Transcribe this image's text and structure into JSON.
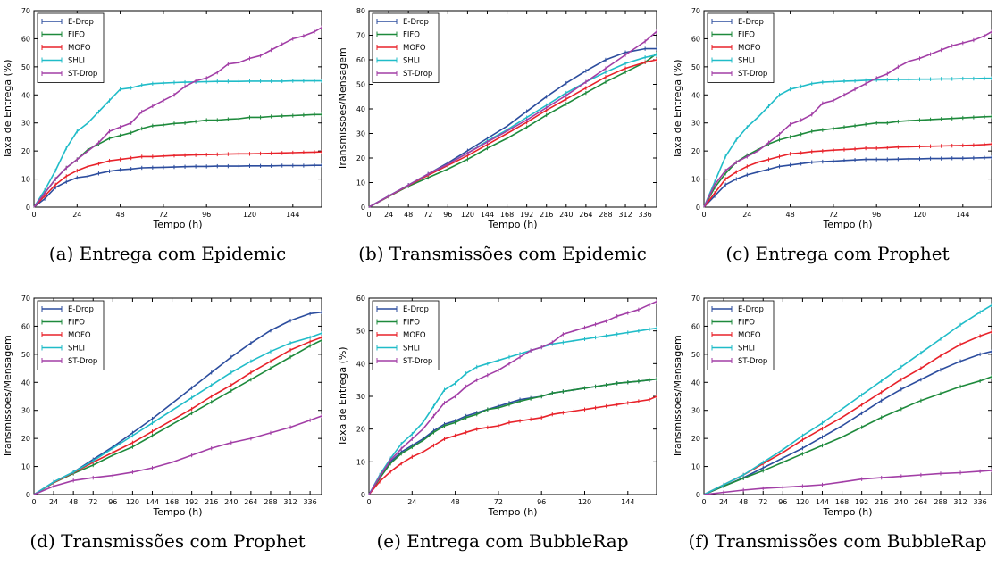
{
  "colors": {
    "E-Drop": "#2c4d9e",
    "FIFO": "#1e8a3c",
    "MOFO": "#e8222a",
    "SHLI": "#20bcc8",
    "ST-Drop": "#a23ea6"
  },
  "chart_data": [
    {
      "type": "line",
      "caption": "(a)  Entrega com Epidemic",
      "xlabel": "Tempo (h)",
      "ylabel": "Taxa de Entrega (%)",
      "xlim": [
        0,
        160
      ],
      "ylim": [
        0,
        70
      ],
      "xticks": [
        0,
        24,
        48,
        72,
        96,
        120,
        144
      ],
      "yticks": [
        0,
        10,
        20,
        30,
        40,
        50,
        60,
        70
      ],
      "legend": "top-left",
      "x": [
        0,
        6,
        12,
        18,
        24,
        30,
        36,
        42,
        48,
        54,
        60,
        66,
        72,
        78,
        84,
        90,
        96,
        102,
        108,
        114,
        120,
        126,
        132,
        138,
        144,
        150,
        156,
        160
      ],
      "series": [
        {
          "name": "E-Drop",
          "values": [
            0,
            3,
            7,
            9,
            10.5,
            11,
            12,
            12.8,
            13.3,
            13.6,
            14,
            14.1,
            14.2,
            14.3,
            14.4,
            14.5,
            14.5,
            14.6,
            14.6,
            14.6,
            14.7,
            14.7,
            14.7,
            14.8,
            14.8,
            14.8,
            14.9,
            14.9
          ]
        },
        {
          "name": "FIFO",
          "values": [
            0,
            5,
            10,
            14,
            17,
            20.5,
            22.5,
            24.5,
            25.5,
            26.5,
            28,
            29,
            29.3,
            29.8,
            30,
            30.5,
            31,
            31,
            31.3,
            31.5,
            32,
            32,
            32.3,
            32.5,
            32.6,
            32.8,
            33,
            33
          ]
        },
        {
          "name": "MOFO",
          "values": [
            0,
            4,
            8,
            11,
            13,
            14.5,
            15.5,
            16.5,
            17,
            17.5,
            18,
            18,
            18.2,
            18.4,
            18.5,
            18.6,
            18.7,
            18.8,
            18.9,
            19,
            19,
            19.1,
            19.2,
            19.3,
            19.4,
            19.5,
            19.6,
            19.7
          ]
        },
        {
          "name": "SHLI",
          "values": [
            0,
            6,
            13,
            21,
            27,
            30,
            34,
            38,
            42,
            42.5,
            43.5,
            44,
            44.2,
            44.4,
            44.5,
            44.6,
            44.7,
            44.8,
            44.8,
            44.8,
            44.9,
            44.9,
            44.9,
            44.9,
            45,
            45,
            45,
            45
          ]
        },
        {
          "name": "ST-Drop",
          "values": [
            0,
            5,
            10,
            14,
            17,
            20,
            23,
            27,
            28.5,
            30,
            34,
            36,
            38,
            40,
            43,
            45,
            46,
            48,
            51,
            51.5,
            53,
            54,
            56,
            58,
            60,
            61,
            62.5,
            64
          ]
        }
      ]
    },
    {
      "type": "line",
      "caption": "(b)  Transmissões com Epidemic",
      "xlabel": "Tempo (h)",
      "ylabel": "Transmissões/Mensagem",
      "xlim": [
        0,
        350
      ],
      "ylim": [
        0,
        80
      ],
      "xticks": [
        0,
        24,
        48,
        72,
        96,
        120,
        144,
        168,
        192,
        216,
        240,
        264,
        288,
        312,
        336
      ],
      "yticks": [
        0,
        10,
        20,
        30,
        40,
        50,
        60,
        70,
        80
      ],
      "legend": "top-left",
      "x": [
        0,
        24,
        48,
        72,
        96,
        120,
        144,
        168,
        192,
        216,
        240,
        264,
        288,
        312,
        336,
        350
      ],
      "series": [
        {
          "name": "E-Drop",
          "values": [
            0,
            4.5,
            9,
            13.5,
            18,
            23,
            28,
            33,
            39,
            45,
            50.5,
            55.5,
            60,
            63,
            64.5,
            64.5
          ]
        },
        {
          "name": "FIFO",
          "values": [
            0,
            4.3,
            8.5,
            12,
            15.5,
            19.5,
            24,
            28,
            32.5,
            37.5,
            42,
            46.5,
            51,
            55,
            59,
            62.5
          ]
        },
        {
          "name": "MOFO",
          "values": [
            0,
            4.4,
            8.8,
            13,
            17,
            21,
            25.5,
            30,
            34.5,
            39.5,
            44,
            48.5,
            53,
            56.5,
            59,
            60
          ]
        },
        {
          "name": "SHLI",
          "values": [
            0,
            4.5,
            9,
            13.5,
            17.5,
            22,
            27,
            31.5,
            36.5,
            41.5,
            46.5,
            51,
            55,
            58.5,
            61,
            62
          ]
        },
        {
          "name": "ST-Drop",
          "values": [
            0,
            4.5,
            9,
            13.5,
            17.5,
            22,
            26.5,
            31,
            35.5,
            40.5,
            45.5,
            51,
            56.5,
            62,
            67.5,
            71.5
          ]
        }
      ]
    },
    {
      "type": "line",
      "caption": "(c)  Entrega com Prophet",
      "xlabel": "Tempo (h)",
      "ylabel": "Taxa de Entrega (%)",
      "xlim": [
        0,
        160
      ],
      "ylim": [
        0,
        70
      ],
      "xticks": [
        0,
        24,
        48,
        72,
        96,
        120,
        144
      ],
      "yticks": [
        0,
        10,
        20,
        30,
        40,
        50,
        60,
        70
      ],
      "legend": "top-left",
      "x": [
        0,
        6,
        12,
        18,
        24,
        30,
        36,
        42,
        48,
        54,
        60,
        66,
        72,
        78,
        84,
        90,
        96,
        102,
        108,
        114,
        120,
        126,
        132,
        138,
        144,
        150,
        156,
        160
      ],
      "series": [
        {
          "name": "E-Drop",
          "values": [
            0,
            4,
            8,
            10,
            11.5,
            12.5,
            13.5,
            14.5,
            15,
            15.5,
            16,
            16.2,
            16.4,
            16.6,
            16.8,
            17,
            17,
            17,
            17.1,
            17.2,
            17.2,
            17.3,
            17.3,
            17.4,
            17.4,
            17.5,
            17.6,
            17.7
          ]
        },
        {
          "name": "FIFO",
          "values": [
            0,
            7,
            12,
            16,
            18.5,
            20.5,
            22.5,
            24,
            25,
            26,
            27,
            27.5,
            28,
            28.5,
            29,
            29.5,
            30,
            30,
            30.5,
            30.8,
            31,
            31.2,
            31.4,
            31.6,
            31.8,
            32,
            32.2,
            32.3
          ]
        },
        {
          "name": "MOFO",
          "values": [
            0,
            5,
            10,
            12.5,
            14.5,
            16,
            17,
            18,
            19,
            19.3,
            19.8,
            20,
            20.3,
            20.5,
            20.7,
            21,
            21,
            21.2,
            21.4,
            21.5,
            21.6,
            21.7,
            21.8,
            21.9,
            22,
            22.1,
            22.3,
            22.5
          ]
        },
        {
          "name": "SHLI",
          "values": [
            0,
            9,
            18,
            24,
            28.5,
            32,
            36,
            40,
            42,
            43,
            44,
            44.5,
            44.7,
            44.9,
            45,
            45.2,
            45.3,
            45.4,
            45.5,
            45.5,
            45.6,
            45.6,
            45.7,
            45.7,
            45.8,
            45.8,
            45.9,
            45.9
          ]
        },
        {
          "name": "ST-Drop",
          "values": [
            0,
            8,
            13,
            16,
            18,
            20,
            23,
            26,
            29.5,
            31,
            33,
            37,
            38,
            40,
            42,
            44,
            46,
            47.5,
            50,
            52,
            53,
            54.5,
            56,
            57.5,
            58.5,
            59.5,
            61,
            62.5
          ]
        }
      ]
    },
    {
      "type": "line",
      "caption": "(d)  Transmissões com Prophet",
      "xlabel": "Tempo (h)",
      "ylabel": "Transmissões/Mensagem",
      "xlim": [
        0,
        350
      ],
      "ylim": [
        0,
        70
      ],
      "xticks": [
        0,
        24,
        48,
        72,
        96,
        120,
        144,
        168,
        192,
        216,
        240,
        264,
        288,
        312,
        336
      ],
      "yticks": [
        0,
        10,
        20,
        30,
        40,
        50,
        60,
        70
      ],
      "legend": "top-left",
      "x": [
        0,
        24,
        48,
        72,
        96,
        120,
        144,
        168,
        192,
        216,
        240,
        264,
        288,
        312,
        336,
        350
      ],
      "series": [
        {
          "name": "E-Drop",
          "values": [
            0,
            4.5,
            8,
            12.5,
            17,
            22,
            27,
            32.5,
            38,
            43.5,
            49,
            54,
            58.5,
            62,
            64.5,
            65
          ]
        },
        {
          "name": "FIFO",
          "values": [
            0,
            4.2,
            7.5,
            10.5,
            14,
            17,
            21,
            25,
            29,
            33,
            37,
            41,
            45,
            49,
            53,
            55
          ]
        },
        {
          "name": "MOFO",
          "values": [
            0,
            4.3,
            7.8,
            11.5,
            15,
            18.5,
            22.5,
            26.5,
            30.5,
            35,
            39,
            43.5,
            47.5,
            51.5,
            54.5,
            56
          ]
        },
        {
          "name": "SHLI",
          "values": [
            0,
            4.5,
            8,
            12,
            16.5,
            21,
            25.5,
            30,
            34.5,
            39,
            43.5,
            47.5,
            51,
            54,
            56,
            57.5
          ]
        },
        {
          "name": "ST-Drop",
          "values": [
            0,
            3,
            5,
            6,
            6.8,
            8,
            9.5,
            11.5,
            14,
            16.5,
            18.5,
            20,
            22,
            24,
            26.5,
            28
          ]
        }
      ]
    },
    {
      "type": "line",
      "caption": "(e)  Entrega com BubbleRap",
      "xlabel": "Tempo (h)",
      "ylabel": "Taxa de Entrega (%)",
      "xlim": [
        0,
        160
      ],
      "ylim": [
        0,
        60
      ],
      "xticks": [
        0,
        24,
        48,
        72,
        96,
        120,
        144
      ],
      "yticks": [
        0,
        10,
        20,
        30,
        40,
        50,
        60
      ],
      "legend": "top-left",
      "x": [
        0,
        6,
        12,
        18,
        24,
        30,
        36,
        42,
        48,
        54,
        60,
        66,
        72,
        78,
        84,
        90,
        96,
        102,
        108,
        114,
        120,
        126,
        132,
        138,
        144,
        150,
        156,
        160
      ],
      "series": [
        {
          "name": "E-Drop",
          "values": [
            0,
            5,
            10,
            13,
            15,
            17,
            19.5,
            21.5,
            22.5,
            24,
            25,
            26,
            27,
            28,
            29,
            29.5,
            30,
            31,
            31.5,
            32,
            32.5,
            33,
            33.5,
            34,
            34.3,
            34.6,
            35,
            35.3
          ]
        },
        {
          "name": "FIFO",
          "values": [
            0,
            5,
            9.5,
            12.5,
            14.5,
            16.5,
            19,
            21,
            22,
            23.5,
            24.5,
            26,
            26.5,
            27.5,
            28.5,
            29.3,
            30,
            31,
            31.5,
            32,
            32.5,
            33,
            33.5,
            34,
            34.3,
            34.6,
            35,
            35.3
          ]
        },
        {
          "name": "MOFO",
          "values": [
            0,
            4,
            7,
            9.5,
            11.5,
            13,
            15,
            17,
            18,
            19,
            20,
            20.5,
            21,
            22,
            22.5,
            23,
            23.5,
            24.5,
            25,
            25.5,
            26,
            26.5,
            27,
            27.5,
            28,
            28.5,
            29,
            30
          ]
        },
        {
          "name": "SHLI",
          "values": [
            0,
            6,
            11,
            15.5,
            18.5,
            22,
            27,
            32,
            34,
            37,
            39,
            40,
            41,
            42,
            43,
            44,
            45,
            46,
            46.5,
            47,
            47.5,
            48,
            48.5,
            49,
            49.5,
            50,
            50.5,
            50.8
          ]
        },
        {
          "name": "ST-Drop",
          "values": [
            0,
            5.5,
            10.5,
            14,
            17,
            20,
            24,
            28,
            30,
            33,
            35,
            36.5,
            38,
            40,
            42,
            44,
            45,
            46.5,
            49,
            50,
            51,
            52,
            53,
            54.5,
            55.5,
            56.5,
            58,
            59
          ]
        }
      ]
    },
    {
      "type": "line",
      "caption": "(f)  Transmissões com BubbleRap",
      "xlabel": "Tempo (h)",
      "ylabel": "Transmissões/Mensagem",
      "xlim": [
        0,
        350
      ],
      "ylim": [
        0,
        70
      ],
      "xticks": [
        0,
        24,
        48,
        72,
        96,
        120,
        144,
        168,
        192,
        216,
        240,
        264,
        288,
        312,
        336
      ],
      "yticks": [
        0,
        10,
        20,
        30,
        40,
        50,
        60,
        70
      ],
      "legend": "top-left",
      "x": [
        0,
        24,
        48,
        72,
        96,
        120,
        144,
        168,
        192,
        216,
        240,
        264,
        288,
        312,
        336,
        350
      ],
      "series": [
        {
          "name": "E-Drop",
          "values": [
            0,
            3,
            6,
            9.5,
            13,
            16.5,
            20.5,
            24.5,
            29,
            33.5,
            37.5,
            41,
            44.5,
            47.5,
            50,
            51
          ]
        },
        {
          "name": "FIFO",
          "values": [
            0,
            3,
            5.8,
            8.5,
            11.5,
            14.5,
            17.5,
            20.5,
            24,
            27.5,
            30.5,
            33.5,
            36,
            38.5,
            40.5,
            42
          ]
        },
        {
          "name": "MOFO",
          "values": [
            0,
            3.5,
            7,
            11,
            15,
            19.5,
            23.5,
            27.5,
            32,
            36.5,
            41,
            45,
            49.5,
            53.5,
            56.5,
            58
          ]
        },
        {
          "name": "SHLI",
          "values": [
            0,
            3.5,
            7,
            11.5,
            16,
            21,
            25.5,
            30.5,
            35.5,
            40.5,
            45.5,
            50.5,
            55.5,
            60.5,
            65,
            67.5
          ]
        },
        {
          "name": "ST-Drop",
          "values": [
            0,
            0.8,
            1.6,
            2.2,
            2.6,
            3,
            3.5,
            4.5,
            5.5,
            6,
            6.5,
            7,
            7.5,
            7.8,
            8.3,
            8.6
          ]
        }
      ]
    }
  ]
}
